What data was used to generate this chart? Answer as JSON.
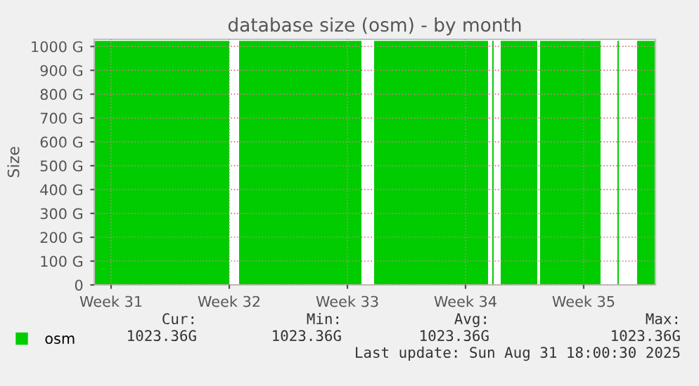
{
  "chart_data": {
    "type": "area",
    "title": "database size (osm) - by month",
    "ylabel": "Size",
    "x": [
      "2025-07-29T12:00",
      "2025-08-06T12:00",
      null,
      "2025-08-07T02:00",
      "2025-08-14T08:00",
      null,
      "2025-08-15T02:00",
      "2025-08-21T20:00",
      null,
      "2025-08-22T02:00",
      "2025-08-22T04:00",
      null,
      "2025-08-22T14:00",
      "2025-08-24T18:00",
      null,
      "2025-08-24T22:00",
      "2025-08-28T12:00",
      null,
      "2025-08-29T12:00",
      "2025-08-29T14:00",
      null,
      "2025-08-30T16:00",
      "2025-08-31T18:00"
    ],
    "series": [
      {
        "name": "osm",
        "color": "#00cc00",
        "values": [
          1023.36,
          1023.36,
          null,
          1023.36,
          1023.36,
          null,
          1023.36,
          1023.36,
          null,
          1023.36,
          1023.36,
          null,
          1023.36,
          1023.36,
          null,
          1023.36,
          1023.36,
          null,
          1023.36,
          1023.36,
          null,
          1023.36,
          1023.36
        ]
      }
    ],
    "xlim": [
      "2025-07-29T12:00",
      "2025-08-31T18:00"
    ],
    "xticks": [
      {
        "value": "2025-07-30T12:00",
        "label": "Week 31"
      },
      {
        "value": "2025-08-06T12:00",
        "label": "Week 32"
      },
      {
        "value": "2025-08-13T12:00",
        "label": "Week 33"
      },
      {
        "value": "2025-08-20T12:00",
        "label": "Week 34"
      },
      {
        "value": "2025-08-27T12:00",
        "label": "Week 35"
      }
    ],
    "ylim": [
      0,
      1030
    ],
    "yticks": [
      0,
      {
        "value": 100,
        "label": "100 G"
      },
      {
        "value": 200,
        "label": "200 G"
      },
      {
        "value": 300,
        "label": "300 G"
      },
      {
        "value": 400,
        "label": "400 G"
      },
      {
        "value": 500,
        "label": "500 G"
      },
      {
        "value": 600,
        "label": "600 G"
      },
      {
        "value": 700,
        "label": "700 G"
      },
      {
        "value": 800,
        "label": "800 G"
      },
      {
        "value": 900,
        "label": "900 G"
      },
      {
        "value": 1000,
        "label": "1000 G"
      }
    ],
    "grid": true,
    "legend": "bottom left",
    "annotations": [
      "Cur:",
      "Min:",
      "Avg:",
      "Max:",
      "1023.36G",
      "1023.36G",
      "1023.36G",
      "1023.36G",
      "Last update: Sun Aug 31 18:00:30 2025"
    ]
  }
}
